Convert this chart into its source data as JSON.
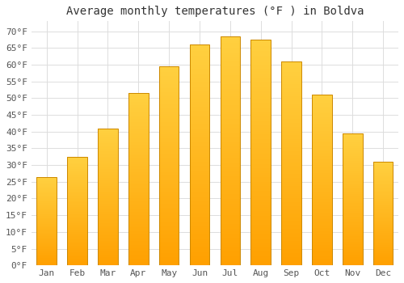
{
  "title": "Average monthly temperatures (°F ) in Boldva",
  "months": [
    "Jan",
    "Feb",
    "Mar",
    "Apr",
    "May",
    "Jun",
    "Jul",
    "Aug",
    "Sep",
    "Oct",
    "Nov",
    "Dec"
  ],
  "values": [
    26.5,
    32.5,
    41.0,
    51.5,
    59.5,
    66.0,
    68.5,
    67.5,
    61.0,
    51.0,
    39.5,
    31.0
  ],
  "bar_color_top": "#FFD040",
  "bar_color_bottom": "#FFA000",
  "bar_edge_color": "#CC8800",
  "background_color": "#FFFFFF",
  "grid_color": "#DDDDDD",
  "yticks": [
    0,
    5,
    10,
    15,
    20,
    25,
    30,
    35,
    40,
    45,
    50,
    55,
    60,
    65,
    70
  ],
  "ylim": [
    0,
    73
  ],
  "title_fontsize": 10,
  "tick_fontsize": 8,
  "font_family": "monospace",
  "bar_width": 0.65
}
